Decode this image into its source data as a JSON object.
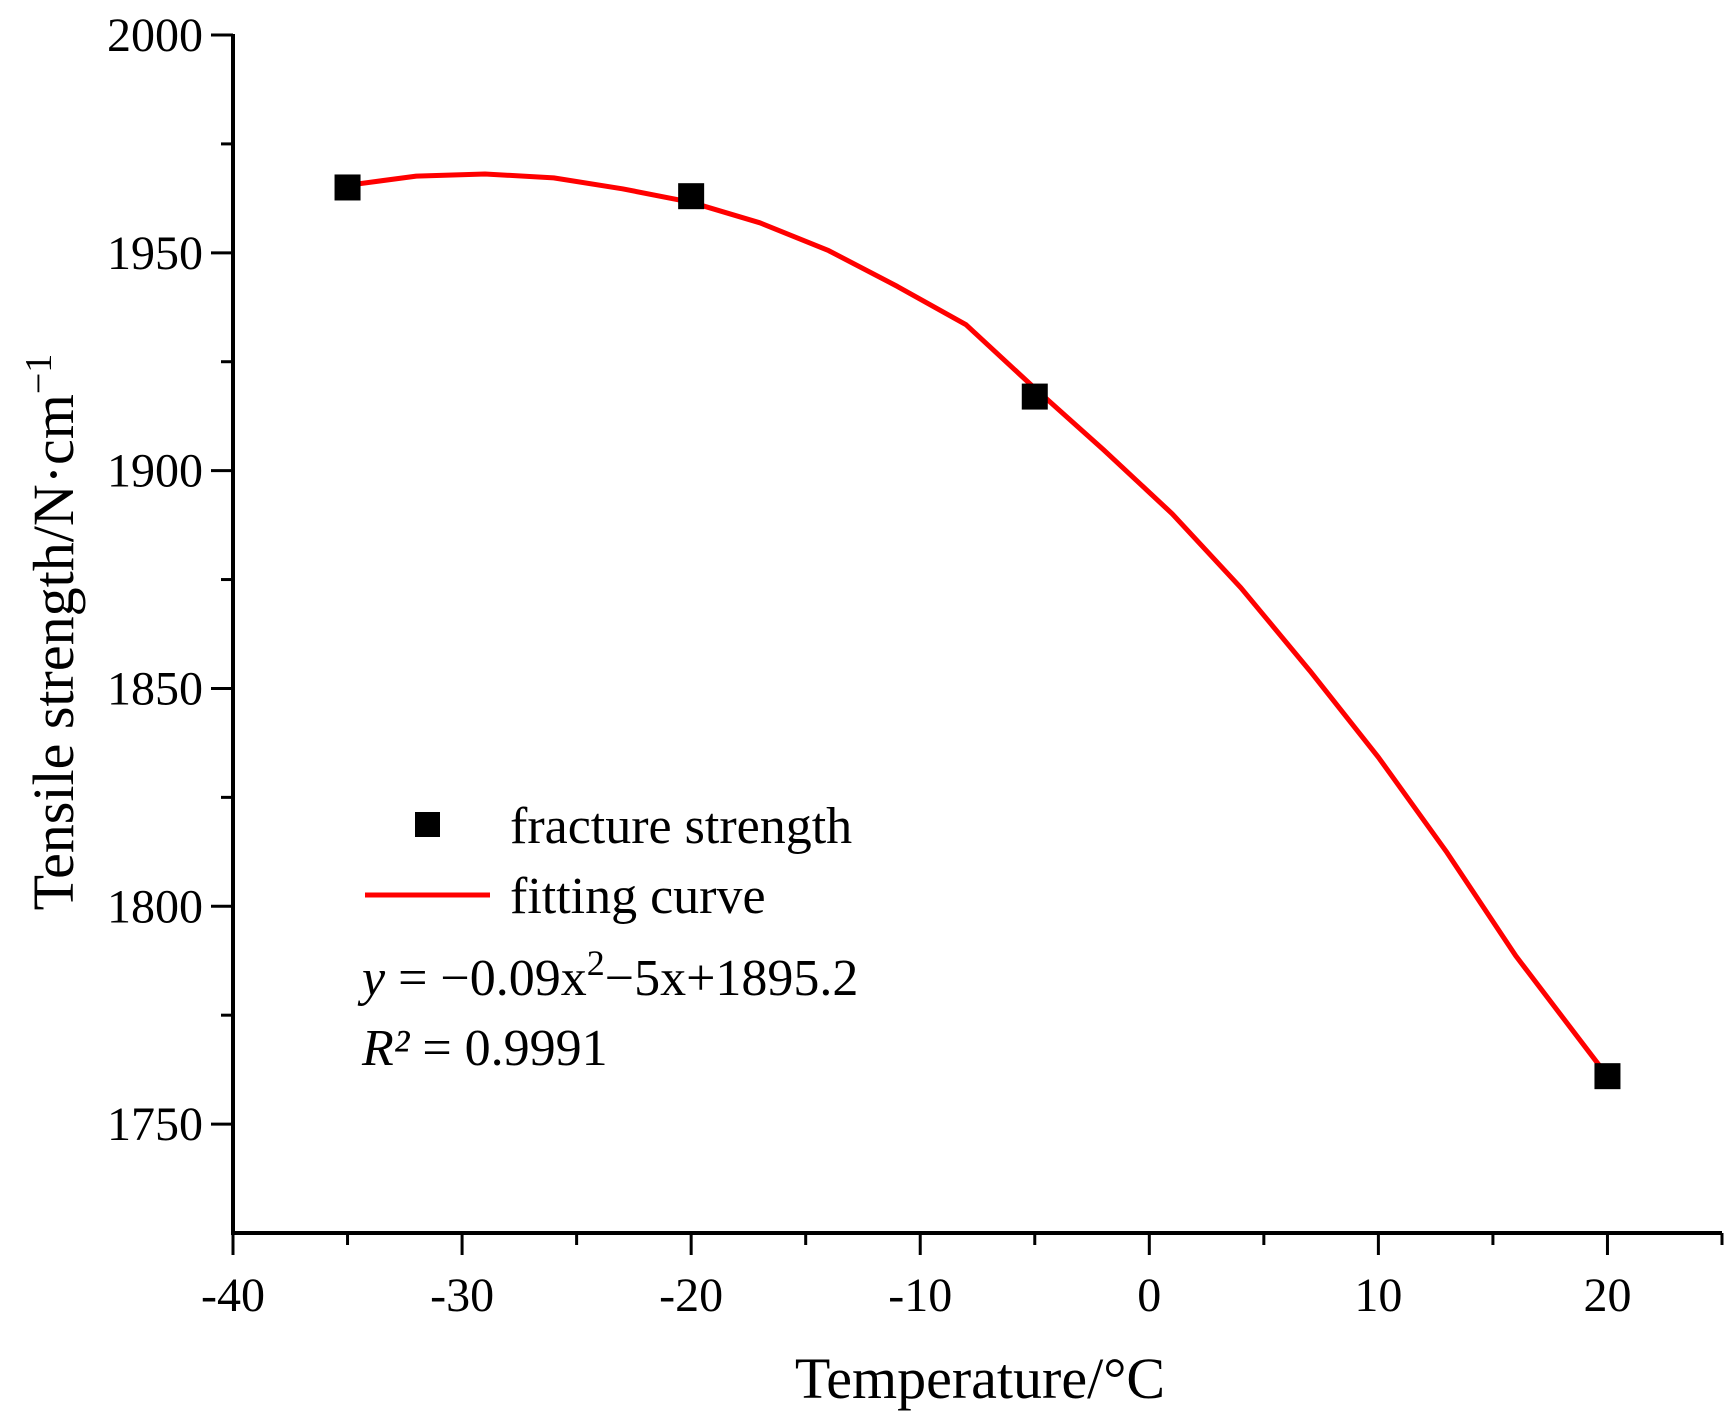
{
  "chart_data": {
    "type": "scatter",
    "title": "",
    "xlabel": "Temperature/°C",
    "ylabel": {
      "base": "Tensile strength/N·cm",
      "sup": "−1"
    },
    "xlim": [
      -40,
      25
    ],
    "ylim": [
      1725,
      2000
    ],
    "x_ticks": [
      -40,
      -30,
      -20,
      -10,
      0,
      10,
      20
    ],
    "x_minor_ticks": [
      -35,
      -25,
      -15,
      -5,
      5,
      15,
      25
    ],
    "y_ticks": [
      1750,
      1800,
      1850,
      1900,
      1950,
      2000
    ],
    "y_minor_ticks": [
      1775,
      1825,
      1875,
      1925,
      1975
    ],
    "series": [
      {
        "name": "fracture strength",
        "kind": "scatter",
        "color": "#000000",
        "x": [
          -35,
          -20,
          -5,
          20
        ],
        "y": [
          1965,
          1963,
          1917,
          1761
        ]
      },
      {
        "name": "fitting curve",
        "kind": "line",
        "color": "#ff0000",
        "x": [
          -35,
          -32,
          -29,
          -26,
          -23,
          -20,
          -17,
          -14,
          -11,
          -8,
          -5,
          -2,
          1,
          4,
          7,
          10,
          13,
          16,
          20
        ],
        "y": [
          1965.5,
          1967.6,
          1968.1,
          1967.2,
          1964.7,
          1961.6,
          1956.9,
          1950.5,
          1942.3,
          1933.5,
          1918.9,
          1904.8,
          1890.1,
          1873.1,
          1854.1,
          1834.2,
          1812.3,
          1788.6,
          1761.0
        ]
      }
    ],
    "legend": {
      "position": "lower-left"
    },
    "annotations": {
      "equation": {
        "y": "y",
        "rest1": " = −0.09x",
        "sup": "2",
        "rest2": "−5x+1895.2"
      },
      "r2": {
        "r": "R²",
        "rest": " = 0.9991"
      }
    }
  }
}
